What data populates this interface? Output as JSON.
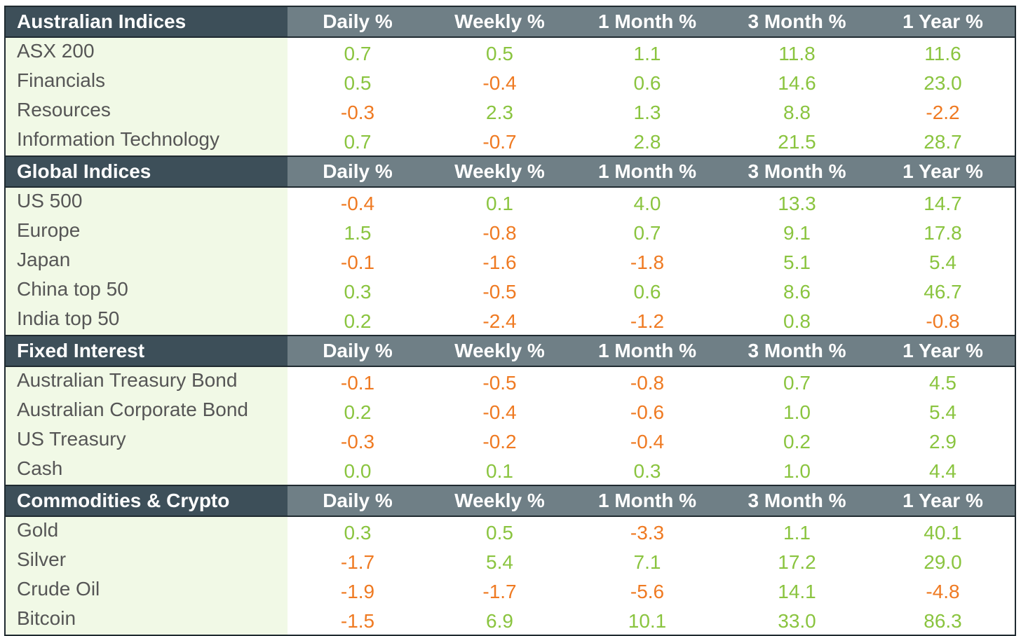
{
  "colors": {
    "positive": "#8ac43f",
    "negative": "#ef7a22",
    "header_title_bg": "#3d4f59",
    "header_column_bg": "#6f7f86",
    "label_bg": "#f1f9e6"
  },
  "sections": [
    {
      "title": "Australian Indices",
      "columns": [
        "Daily %",
        "Weekly %",
        "1 Month %",
        "3 Month %",
        "1 Year %"
      ],
      "rows": [
        {
          "name": "ASX 200",
          "values": [
            "0.7",
            "0.5",
            "1.1",
            "11.8",
            "11.6"
          ]
        },
        {
          "name": "Financials",
          "values": [
            "0.5",
            "-0.4",
            "0.6",
            "14.6",
            "23.0"
          ]
        },
        {
          "name": "Resources",
          "values": [
            "-0.3",
            "2.3",
            "1.3",
            "8.8",
            "-2.2"
          ]
        },
        {
          "name": "Information Technology",
          "values": [
            "0.7",
            "-0.7",
            "2.8",
            "21.5",
            "28.7"
          ]
        }
      ]
    },
    {
      "title": "Global Indices",
      "columns": [
        "Daily %",
        "Weekly %",
        "1 Month %",
        "3 Month %",
        "1 Year %"
      ],
      "rows": [
        {
          "name": "US 500",
          "values": [
            "-0.4",
            "0.1",
            "4.0",
            "13.3",
            "14.7"
          ]
        },
        {
          "name": "Europe",
          "values": [
            "1.5",
            "-0.8",
            "0.7",
            "9.1",
            "17.8"
          ]
        },
        {
          "name": "Japan",
          "values": [
            "-0.1",
            "-1.6",
            "-1.8",
            "5.1",
            "5.4"
          ]
        },
        {
          "name": "China top 50",
          "values": [
            "0.3",
            "-0.5",
            "0.6",
            "8.6",
            "46.7"
          ]
        },
        {
          "name": "India top 50",
          "values": [
            "0.2",
            "-2.4",
            "-1.2",
            "0.8",
            "-0.8"
          ]
        }
      ]
    },
    {
      "title": "Fixed Interest",
      "columns": [
        "Daily %",
        "Weekly %",
        "1 Month %",
        "3 Month %",
        "1 Year %"
      ],
      "rows": [
        {
          "name": "Australian Treasury Bond",
          "values": [
            "-0.1",
            "-0.5",
            "-0.8",
            "0.7",
            "4.5"
          ]
        },
        {
          "name": "Australian Corporate Bond",
          "values": [
            "0.2",
            "-0.4",
            "-0.6",
            "1.0",
            "5.4"
          ]
        },
        {
          "name": "US Treasury",
          "values": [
            "-0.3",
            "-0.2",
            "-0.4",
            "0.2",
            "2.9"
          ]
        },
        {
          "name": "Cash",
          "values": [
            "0.0",
            "0.1",
            "0.3",
            "1.0",
            "4.4"
          ]
        }
      ]
    },
    {
      "title": "Commodities & Crypto",
      "columns": [
        "Daily %",
        "Weekly %",
        "1 Month %",
        "3 Month %",
        "1 Year %"
      ],
      "rows": [
        {
          "name": "Gold",
          "values": [
            "0.3",
            "0.5",
            "-3.3",
            "1.1",
            "40.1"
          ]
        },
        {
          "name": "Silver",
          "values": [
            "-1.7",
            "5.4",
            "7.1",
            "17.2",
            "29.0"
          ]
        },
        {
          "name": "Crude Oil",
          "values": [
            "-1.9",
            "-1.7",
            "-5.6",
            "14.1",
            "-4.8"
          ]
        },
        {
          "name": "Bitcoin",
          "values": [
            "-1.5",
            "6.9",
            "10.1",
            "33.0",
            "86.3"
          ]
        }
      ]
    }
  ]
}
